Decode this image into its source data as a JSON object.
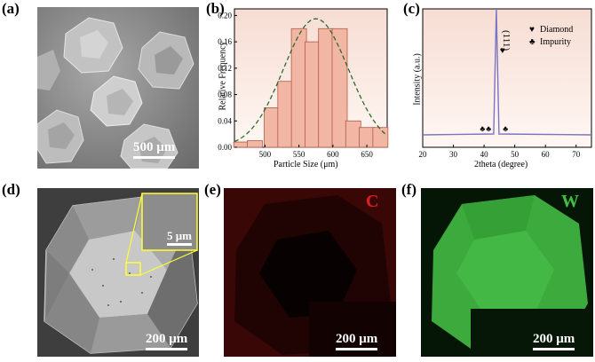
{
  "panels": {
    "a": {
      "label": "(a)",
      "scale": "500 μm"
    },
    "b": {
      "label": "(b)"
    },
    "c": {
      "label": "(c)"
    },
    "d": {
      "label": "(d)",
      "scale": "200 μm",
      "inset_scale": "5 μm"
    },
    "e": {
      "label": "(e)",
      "scale": "200 μm",
      "element": "C"
    },
    "f": {
      "label": "(f)",
      "scale": "200 μm",
      "element": "W"
    }
  },
  "colors": {
    "C_map": "#d42020",
    "W_map": "#3fbf3f",
    "bars": "#f2b6a4",
    "bar_edge": "#b05a44",
    "fit": "#2e6a2e",
    "xrd": "#7b73c4"
  },
  "chart_data": [
    {
      "type": "bar",
      "xlabel": "Particle Size (μm)",
      "ylabel": "Relative Frequency",
      "x": [
        465,
        485,
        510,
        530,
        550,
        570,
        590,
        610,
        630,
        650,
        670
      ],
      "values": [
        0.008,
        0.01,
        0.06,
        0.1,
        0.18,
        0.16,
        0.18,
        0.18,
        0.04,
        0.03,
        0.03
      ],
      "fit": "gaussian",
      "fit_center": 575,
      "fit_peak": 0.195,
      "xlim": [
        455,
        680
      ],
      "ylim": [
        0,
        0.21
      ],
      "xticks": [
        "500",
        "550",
        "600",
        "650"
      ],
      "yticks": [
        "0.00",
        "0.04",
        "0.08",
        "0.12",
        "0.16",
        "0.20"
      ]
    },
    {
      "type": "line",
      "xlabel": "2theta (degree)",
      "ylabel": "Intensity (a.u.)",
      "xlim": [
        20,
        75
      ],
      "xticks": [
        "20",
        "30",
        "40",
        "50",
        "60",
        "70"
      ],
      "peak_label": "(111)",
      "peak_x": 44,
      "legend": [
        "Diamond",
        "Impurity"
      ],
      "impurity_x": [
        39.5,
        41.5,
        47
      ]
    }
  ]
}
